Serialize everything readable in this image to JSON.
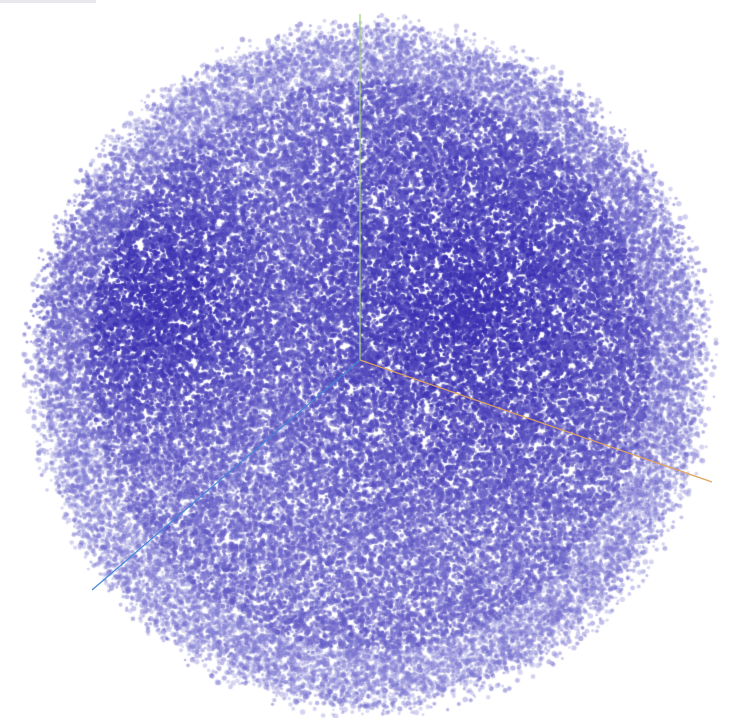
{
  "chart_data": {
    "type": "scatter",
    "projection": "3d",
    "title": "",
    "xlabel": "",
    "ylabel": "",
    "zlabel": "",
    "grid": false,
    "legend": "none",
    "point_color": "#3a2fb0",
    "point_color_light": "#8a86d8",
    "axis_colors": {
      "x": "#e0a35a",
      "y": "#9ad07a",
      "z": "#3f86d8"
    },
    "shape": "dense roughly spherical cloud",
    "estimated_points": 60000
  }
}
